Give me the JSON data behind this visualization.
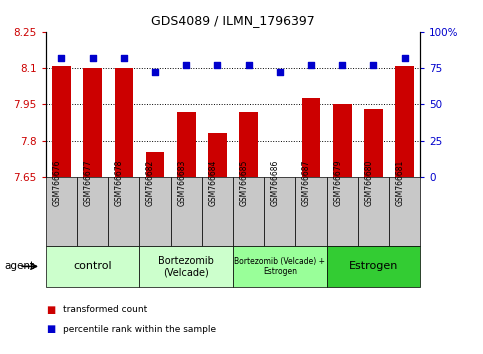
{
  "title": "GDS4089 / ILMN_1796397",
  "samples": [
    "GSM766676",
    "GSM766677",
    "GSM766678",
    "GSM766682",
    "GSM766683",
    "GSM766684",
    "GSM766685",
    "GSM766686",
    "GSM766687",
    "GSM766679",
    "GSM766680",
    "GSM766681"
  ],
  "bar_values": [
    8.11,
    8.1,
    8.1,
    7.755,
    7.92,
    7.83,
    7.92,
    7.652,
    7.975,
    7.95,
    7.93,
    8.11
  ],
  "percentile_values": [
    82,
    82,
    82,
    72,
    77,
    77,
    77,
    72,
    77,
    77,
    77,
    82
  ],
  "bar_color": "#cc0000",
  "dot_color": "#0000cc",
  "ylim_left": [
    7.65,
    8.25
  ],
  "ylim_right": [
    0,
    100
  ],
  "yticks_left": [
    7.65,
    7.8,
    7.95,
    8.1,
    8.25
  ],
  "ytick_labels_left": [
    "7.65",
    "7.8",
    "7.95",
    "8.1",
    "8.25"
  ],
  "yticks_right": [
    0,
    25,
    50,
    75,
    100
  ],
  "ytick_labels_right": [
    "0",
    "25",
    "50",
    "75",
    "100%"
  ],
  "hlines": [
    8.1,
    7.95,
    7.8
  ],
  "groups": [
    {
      "label": "control",
      "start": 0,
      "end": 3,
      "color": "#ccffcc",
      "fontsize": 8
    },
    {
      "label": "Bortezomib\n(Velcade)",
      "start": 3,
      "end": 6,
      "color": "#ccffcc",
      "fontsize": 7
    },
    {
      "label": "Bortezomib (Velcade) +\nEstrogen",
      "start": 6,
      "end": 9,
      "color": "#99ff99",
      "fontsize": 5.5
    },
    {
      "label": "Estrogen",
      "start": 9,
      "end": 12,
      "color": "#33cc33",
      "fontsize": 8
    }
  ],
  "legend_bar_label": "transformed count",
  "legend_dot_label": "percentile rank within the sample",
  "xlabel_agent": "agent",
  "background_color": "#ffffff",
  "plot_bg_color": "#ffffff",
  "tick_label_color_left": "#cc0000",
  "tick_label_color_right": "#0000cc",
  "sample_box_color": "#c8c8c8"
}
